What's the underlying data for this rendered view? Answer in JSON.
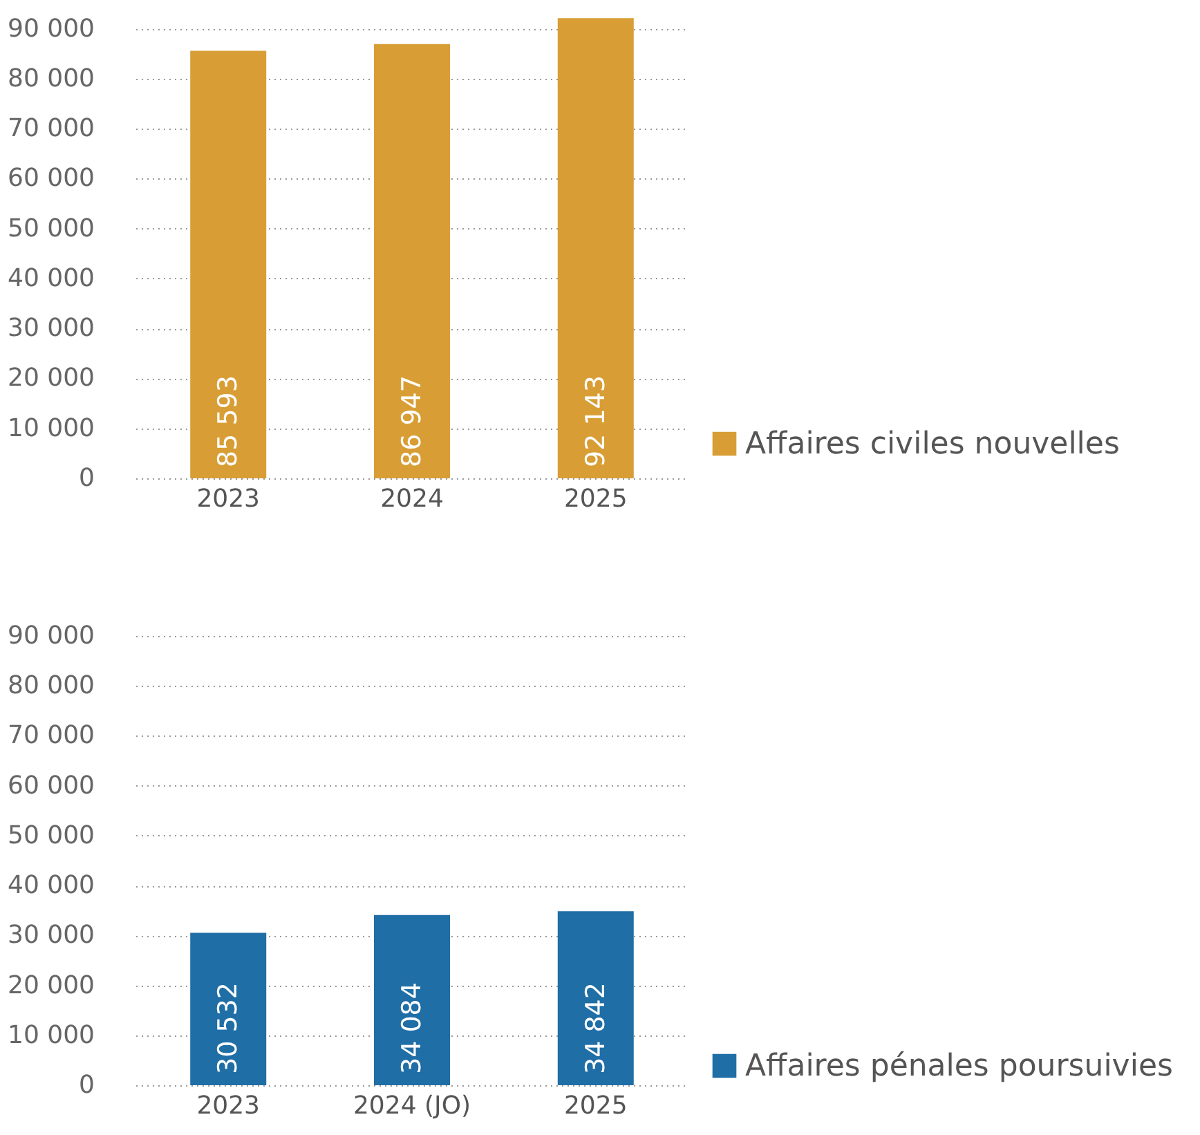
{
  "chart_data": [
    {
      "type": "bar",
      "categories": [
        "2023",
        "2024",
        "2025"
      ],
      "series": [
        {
          "name": "Affaires civiles nouvelles",
          "color": "#d89e35",
          "values": [
            85593,
            86947,
            92143
          ],
          "value_labels": [
            "85 593",
            "86 947",
            "92 143"
          ]
        }
      ],
      "ylim": [
        0,
        93000
      ],
      "yticks": [
        0,
        {
          "value": 10000,
          "label": "10 000"
        },
        {
          "value": 20000,
          "label": "20 000"
        },
        {
          "value": 30000,
          "label": "30 000"
        },
        {
          "value": 40000,
          "label": "40 000"
        },
        {
          "value": 50000,
          "label": "50 000"
        },
        {
          "value": 60000,
          "label": "60 000"
        },
        {
          "value": 70000,
          "label": "70 000"
        },
        {
          "value": 80000,
          "label": "80 000"
        },
        {
          "value": 90000,
          "label": "90 000"
        }
      ],
      "grid": "y",
      "legend": "bottom right"
    },
    {
      "type": "bar",
      "categories": [
        "2023",
        "2024 (JO)",
        "2025"
      ],
      "series": [
        {
          "name": "Affaires pénales poursuivies",
          "color": "#1f6ea6",
          "values": [
            30532,
            34084,
            34842
          ],
          "value_labels": [
            "30 532",
            "34 084",
            "34 842"
          ]
        }
      ],
      "ylim": [
        0,
        90000
      ],
      "yticks": [
        0,
        {
          "value": 10000,
          "label": "10 000"
        },
        {
          "value": 20000,
          "label": "20 000"
        },
        {
          "value": 30000,
          "label": "30 000"
        },
        {
          "value": 40000,
          "label": "40 000"
        },
        {
          "value": 50000,
          "label": "50 000"
        },
        {
          "value": 60000,
          "label": "60 000"
        },
        {
          "value": 70000,
          "label": "70 000"
        },
        {
          "value": 80000,
          "label": "80 000"
        },
        {
          "value": 90000,
          "label": "90 000"
        }
      ],
      "grid": "y",
      "legend": "bottom right"
    }
  ]
}
